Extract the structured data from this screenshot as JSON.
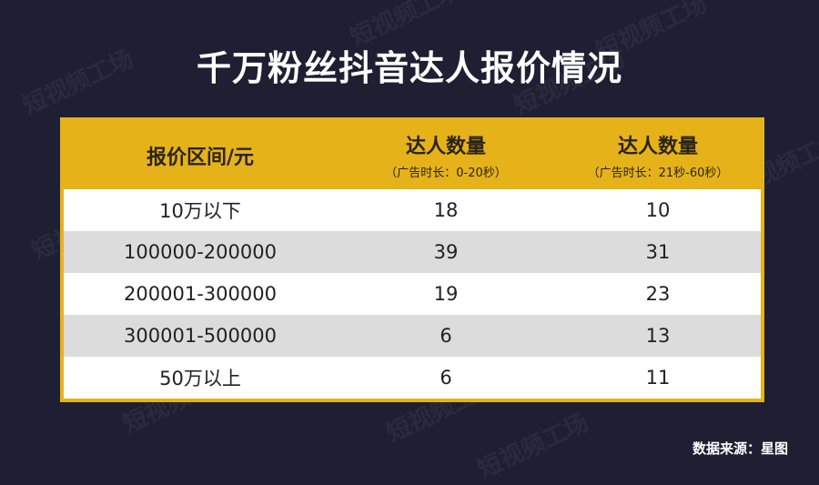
{
  "watermark": "短视频工场",
  "chart_data": {
    "type": "table",
    "title": "千万粉丝抖音达人报价情况",
    "columns": [
      {
        "label": "报价区间/元",
        "sub": ""
      },
      {
        "label": "达人数量",
        "sub": "（广告时长：0-20秒）"
      },
      {
        "label": "达人数量",
        "sub": "（广告时长：21秒-60秒）"
      }
    ],
    "rows": [
      [
        "10万以下",
        18,
        10
      ],
      [
        "100000-200000",
        39,
        31
      ],
      [
        "200001-300000",
        19,
        23
      ],
      [
        "300001-500000",
        6,
        13
      ],
      [
        "50万以上",
        6,
        11
      ]
    ],
    "source": "数据来源：星图",
    "colors": {
      "background": "#1e1f33",
      "header": "#e6b219",
      "row_alt": "#dcdcdc"
    }
  }
}
